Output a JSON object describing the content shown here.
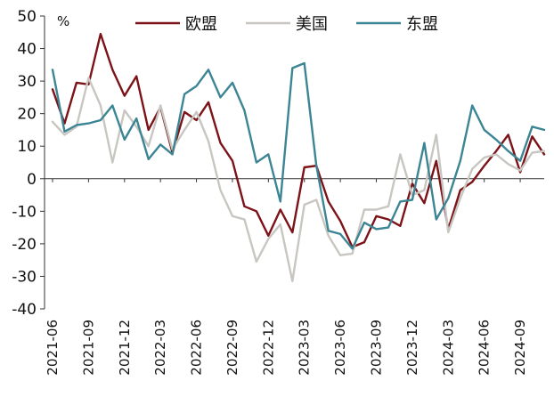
{
  "chart_data": {
    "type": "line",
    "unit": "%",
    "ylim": [
      -40,
      50
    ],
    "yticks": [
      50,
      40,
      30,
      20,
      10,
      0,
      -10,
      -20,
      -30,
      -40
    ],
    "grid": false,
    "legend_position": "top",
    "tick_labels": [
      "2021-06",
      "2021-09",
      "2021-12",
      "2022-03",
      "2022-06",
      "2022-09",
      "2022-12",
      "2023-03",
      "2023-06",
      "2023-09",
      "2023-12",
      "2024-03",
      "2024-06",
      "2024-09"
    ],
    "x": [
      "2021-06",
      "2021-07",
      "2021-08",
      "2021-09",
      "2021-10",
      "2021-11",
      "2021-12",
      "2022-01",
      "2022-02",
      "2022-03",
      "2022-04",
      "2022-05",
      "2022-06",
      "2022-07",
      "2022-08",
      "2022-09",
      "2022-10",
      "2022-11",
      "2022-12",
      "2023-01",
      "2023-02",
      "2023-03",
      "2023-04",
      "2023-05",
      "2023-06",
      "2023-07",
      "2023-08",
      "2023-09",
      "2023-10",
      "2023-11",
      "2023-12",
      "2024-01",
      "2024-02",
      "2024-03",
      "2024-04",
      "2024-05",
      "2024-06",
      "2024-07",
      "2024-08",
      "2024-09",
      "2024-10",
      "2024-11"
    ],
    "series": [
      {
        "name": "欧盟",
        "color": "#7b1318",
        "values": [
          27.5,
          17,
          29.5,
          29,
          44.5,
          33.5,
          25.5,
          31.5,
          15,
          22,
          8,
          20.5,
          18,
          23.5,
          11,
          5.5,
          -8.5,
          -10,
          -17.5,
          -9.5,
          -16.5,
          3.5,
          4,
          -7,
          -13,
          -21,
          -19.5,
          -11.5,
          -12.5,
          -14.5,
          -1.5,
          -7.5,
          5.5,
          -15.5,
          -3.5,
          -1,
          4,
          8.5,
          13.5,
          2,
          13,
          7.5
        ]
      },
      {
        "name": "美国",
        "color": "#c8c6c0",
        "values": [
          17.5,
          13.5,
          16,
          31,
          22.5,
          5,
          21,
          16,
          10,
          22.5,
          9,
          15,
          20.5,
          11.5,
          -3.5,
          -11.5,
          -12.5,
          -25.5,
          -18.5,
          -14,
          -31.5,
          -8,
          -6.5,
          -17.5,
          -23.5,
          -23,
          -9.5,
          -9.5,
          -8.5,
          7.5,
          -5,
          -3.5,
          13.5,
          -16.5,
          -6,
          3,
          6.5,
          7.5,
          4.5,
          2.5,
          8,
          8.5
        ]
      },
      {
        "name": "东盟",
        "color": "#3c8594",
        "values": [
          33.5,
          14.5,
          16.5,
          17,
          18,
          22.5,
          12,
          18.5,
          6,
          10.5,
          7.5,
          26,
          28.5,
          33.5,
          25,
          29.5,
          21,
          5,
          7.5,
          -7,
          34,
          35.5,
          4,
          -16,
          -17,
          -21.5,
          -13.5,
          -15.5,
          -15,
          -7,
          -6.5,
          11,
          -12.5,
          -6,
          5.5,
          22.5,
          15,
          12,
          8.5,
          5.5,
          16,
          15
        ]
      }
    ]
  }
}
